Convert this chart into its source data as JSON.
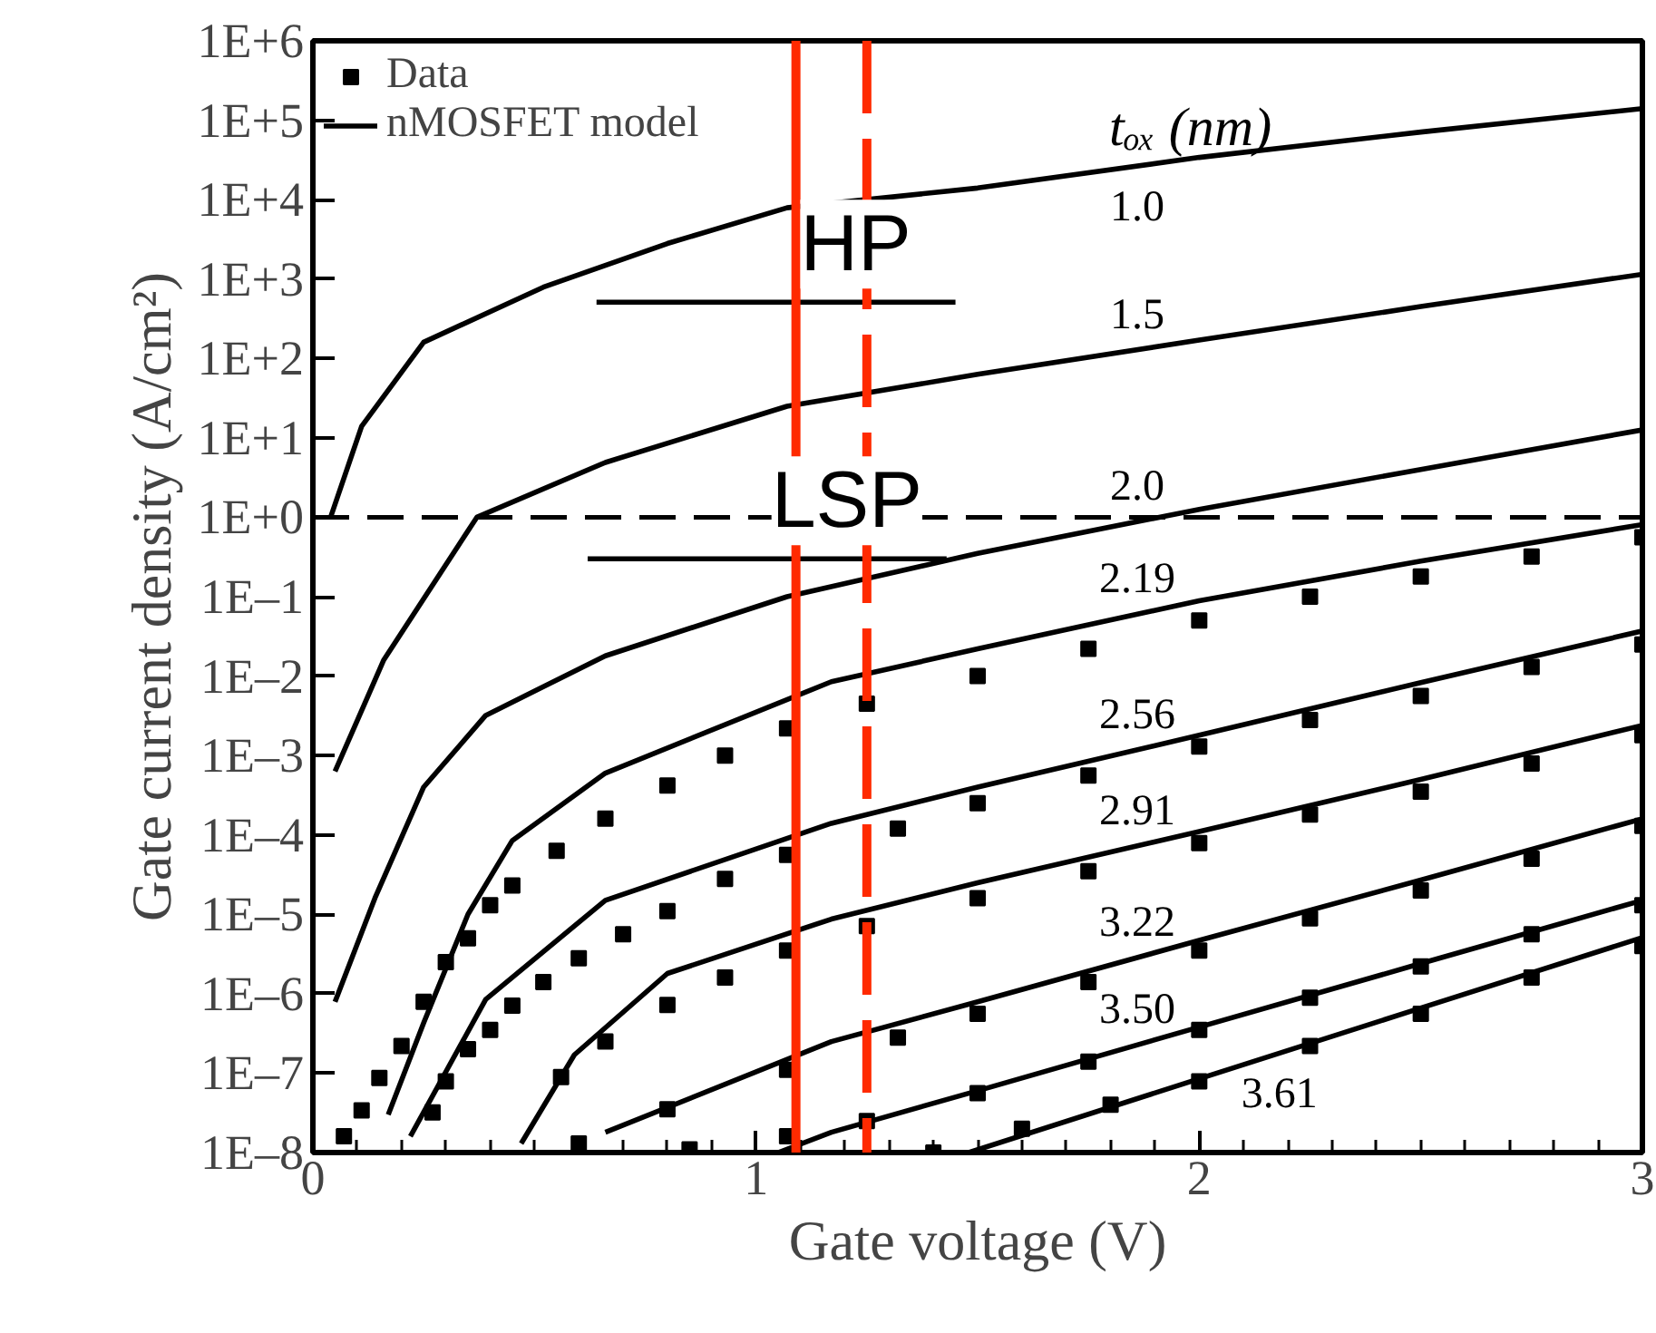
{
  "chart_data": {
    "type": "line",
    "xlabel": "Gate voltage (V)",
    "ylabel": "Gate current density (A/cm²)",
    "log": "y",
    "legend": "top left",
    "xlim": [
      0,
      3
    ],
    "xticks": [
      0,
      1,
      2,
      3
    ],
    "ylim": [
      1e-08,
      1000000.0
    ],
    "yticks": [
      {
        "value": 1e-08,
        "label": "1E–8"
      },
      {
        "value": 1e-07,
        "label": "1E–7"
      },
      {
        "value": 1e-06,
        "label": "1E–6"
      },
      {
        "value": 1e-05,
        "label": "1E–5"
      },
      {
        "value": 0.0001,
        "label": "1E–4"
      },
      {
        "value": 0.001,
        "label": "1E–3"
      },
      {
        "value": 0.01,
        "label": "1E–2"
      },
      {
        "value": 0.1,
        "label": "1E–1"
      },
      {
        "value": 1,
        "label": "1E+0"
      },
      {
        "value": 10,
        "label": "1E+1"
      },
      {
        "value": 100,
        "label": "1E+2"
      },
      {
        "value": 1000,
        "label": "1E+3"
      },
      {
        "value": 10000,
        "label": "1E+4"
      },
      {
        "value": 100000,
        "label": "1E+5"
      },
      {
        "value": 1000000,
        "label": "1E+6"
      }
    ],
    "series": [
      {
        "name": "Data",
        "type": "scatter",
        "marker": "square",
        "color": "#000000",
        "x": [
          0.07,
          0.11,
          0.15,
          0.2,
          0.25,
          0.3,
          0.35,
          0.4,
          0.45,
          0.55,
          0.66,
          0.8,
          0.93,
          1.07,
          1.25,
          1.5,
          1.75,
          2.0,
          2.25,
          2.5,
          2.75,
          3.0
        ],
        "values": [
          1.6e-08,
          3.4e-08,
          8.7e-08,
          2.2e-07,
          7.9e-07,
          2.5e-06,
          5e-06,
          1.3e-05,
          2.3e-05,
          6.3e-05,
          0.00016,
          0.00042,
          0.001,
          0.0022,
          0.0045,
          0.01,
          0.022,
          0.05,
          0.1,
          0.18,
          0.32,
          0.56
        ]
      },
      {
        "name": "nMOSFET model",
        "color": "#000000",
        "x": [
          0.04,
          0.11,
          0.25,
          0.52,
          0.8,
          1.07,
          1.5,
          2.0,
          2.5,
          3.0
        ],
        "values": [
          1.0,
          14,
          160,
          790,
          2800,
          7900,
          14000,
          34000,
          71000,
          140000
        ]
      },
      {
        "color": "#000000",
        "x": [
          0.05,
          0.16,
          0.37,
          0.66,
          1.07,
          1.5,
          2.0,
          2.5,
          3.0
        ],
        "values": [
          0.00063,
          0.016,
          1.0,
          4.9,
          25,
          63,
          170,
          450,
          1150
        ]
      },
      {
        "color": "#000000",
        "x": [
          0.05,
          0.14,
          0.25,
          0.39,
          0.66,
          1.07,
          1.5,
          2.0,
          2.5,
          3.0
        ],
        "values": [
          7.9e-07,
          1.6e-05,
          0.0004,
          0.0032,
          0.018,
          0.1,
          0.35,
          1.26,
          4.0,
          12.6
        ]
      },
      {
        "color": "#000000",
        "x": [
          0.17,
          0.25,
          0.35,
          0.45,
          0.66,
          1.17,
          1.5,
          2.0,
          2.5,
          3.0
        ],
        "values": [
          3e-08,
          4.3e-07,
          1e-05,
          8.5e-05,
          0.0006,
          0.0085,
          0.022,
          0.089,
          0.28,
          0.81
        ]
      },
      {
        "color": "#000000",
        "x": [
          0.22,
          0.39,
          0.66,
          1.17,
          1.5,
          2.0,
          2.5,
          3.0
        ],
        "values": [
          1.6e-08,
          8.5e-07,
          1.5e-05,
          0.00014,
          0.0004,
          0.0018,
          0.0083,
          0.037
        ]
      },
      {
        "color": "#000000",
        "x": [
          0.47,
          0.59,
          0.8,
          1.17,
          1.5,
          2.0,
          2.5,
          3.0
        ],
        "values": [
          1.3e-08,
          1.7e-07,
          1.8e-06,
          8.7e-06,
          2.5e-05,
          0.00011,
          0.0005,
          0.0024
        ]
      },
      {
        "color": "#000000",
        "x": [
          0.66,
          1.17,
          1.5,
          2.0,
          2.5,
          3.0
        ],
        "values": [
          1.8e-08,
          2.5e-07,
          7.9e-07,
          4.7e-06,
          2.7e-05,
          0.00016
        ]
      },
      {
        "color": "#000000",
        "x": [
          1.05,
          1.17,
          1.5,
          2.0,
          2.5,
          3.0
        ],
        "values": [
          1e-08,
          1.8e-08,
          6e-08,
          3.8e-07,
          2.4e-06,
          1.5e-05
        ]
      },
      {
        "color": "#000000",
        "x": [
          1.48,
          2.0,
          2.5,
          3.0
        ],
        "values": [
          1e-08,
          8.5e-08,
          6.6e-07,
          5.1e-06
        ]
      },
      {
        "type": "scatter",
        "marker": "square",
        "color": "#000000",
        "x": [
          0.27,
          0.3,
          0.35,
          0.4,
          0.45,
          0.52,
          0.6,
          0.7,
          0.8,
          0.93,
          1.07,
          1.32,
          1.5,
          1.75,
          2.0,
          2.25,
          2.5,
          2.75,
          3.0
        ],
        "values": [
          3.2e-08,
          7.9e-08,
          2e-07,
          3.5e-07,
          7.1e-07,
          1.4e-06,
          2.8e-06,
          5.6e-06,
          1.1e-05,
          2.8e-05,
          5.6e-05,
          0.00012,
          0.00025,
          0.00056,
          0.0013,
          0.0028,
          0.0056,
          0.013,
          0.025
        ]
      },
      {
        "type": "scatter",
        "marker": "square",
        "color": "#000000",
        "x": [
          0.56,
          0.66,
          0.8,
          0.93,
          1.07,
          1.25,
          1.5,
          1.75,
          2.0,
          2.25,
          2.5,
          2.75,
          3.0
        ],
        "values": [
          8.9e-08,
          2.5e-07,
          7.2e-07,
          1.6e-06,
          3.5e-06,
          7.1e-06,
          1.6e-05,
          3.5e-05,
          7.9e-05,
          0.00018,
          0.00035,
          0.00079,
          0.0018
        ]
      },
      {
        "type": "scatter",
        "marker": "square",
        "color": "#000000",
        "x": [
          0.6,
          0.8,
          1.07,
          1.32,
          1.5,
          1.75,
          2.0,
          2.25,
          2.5,
          2.75,
          3.0
        ],
        "values": [
          1.3e-08,
          3.5e-08,
          1.1e-07,
          2.8e-07,
          5.6e-07,
          1.4e-06,
          3.5e-06,
          8.9e-06,
          2e-05,
          5e-05,
          0.00013
        ]
      },
      {
        "type": "scatter",
        "marker": "square",
        "color": "#000000",
        "x": [
          0.85,
          1.07,
          1.25,
          1.5,
          1.75,
          2.0,
          2.25,
          2.5,
          2.75,
          3.0
        ],
        "values": [
          1.1e-08,
          1.6e-08,
          2.5e-08,
          5.6e-08,
          1.4e-07,
          3.5e-07,
          8.9e-07,
          2.2e-06,
          5.6e-06,
          1.3e-05
        ]
      },
      {
        "type": "scatter",
        "marker": "square",
        "color": "#000000",
        "x": [
          1.4,
          1.6,
          1.8,
          2.0,
          2.25,
          2.5,
          2.75,
          3.0
        ],
        "values": [
          1e-08,
          2e-08,
          4e-08,
          7.9e-08,
          2.2e-07,
          5.6e-07,
          1.6e-06,
          4e-06
        ]
      },
      {
        "color": "#000000",
        "x": [
          0.64,
          1.45
        ],
        "values": [
          510,
          510
        ]
      },
      {
        "color": "#000000",
        "x": [
          0.62,
          1.43
        ],
        "values": [
          0.3,
          0.3
        ]
      }
    ],
    "ref_lines": [
      {
        "axis": "y",
        "value": 1,
        "line_style": "dashed",
        "color": "#000000"
      },
      {
        "axis": "x",
        "value": 1.09,
        "color": "#ff2a00"
      },
      {
        "axis": "x",
        "value": 1.25,
        "line_style": "dashed",
        "color": "#ff2a00"
      }
    ],
    "annotations": [
      "tₒₓ (nm)",
      "1.0",
      "1.5",
      "2.0",
      "2.19",
      "2.56",
      "2.91",
      "3.22",
      "3.50",
      "3.61",
      "HP",
      "LSP"
    ]
  }
}
